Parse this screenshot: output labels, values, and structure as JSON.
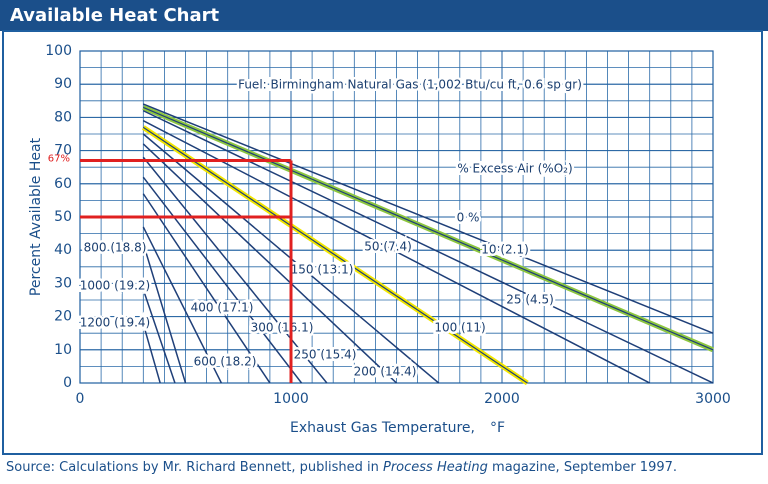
{
  "chart_data": {
    "type": "line",
    "title": "Available Heat Chart",
    "annotation": "Fuel: Birmingham Natural Gas (1,002 Btu/cu ft, 0.6 sp gr)",
    "legend_title": "% Excess Air (%O₂)",
    "xlabel": "Exhaust Gas Temperature,",
    "xunit": "°F",
    "ylabel": "Percent Available Heat",
    "xlim": [
      0,
      3000
    ],
    "ylim": [
      0,
      100
    ],
    "xticks": [
      0,
      1000,
      2000,
      3000
    ],
    "yticks": [
      0,
      10,
      20,
      30,
      40,
      50,
      60,
      70,
      80,
      90,
      100
    ],
    "grid": true,
    "series": [
      {
        "name": "0 %",
        "color": "#1f3f78",
        "x": [
          300,
          3000
        ],
        "values": [
          84,
          15
        ]
      },
      {
        "name": "10 (2.1)",
        "color": "#8dc63f",
        "x": [
          300,
          3000
        ],
        "values": [
          83,
          10
        ]
      },
      {
        "name": "25 (4.5)",
        "color": "#1f3f78",
        "x": [
          300,
          3000
        ],
        "values": [
          82,
          0
        ]
      },
      {
        "name": "50 (7.4)",
        "color": "#1f3f78",
        "x": [
          300,
          2700
        ],
        "values": [
          79,
          0
        ]
      },
      {
        "name": "100 (11)",
        "color": "#f2e600",
        "x": [
          300,
          2120
        ],
        "values": [
          77,
          0
        ]
      },
      {
        "name": "150 (13.1)",
        "color": "#1f3f78",
        "x": [
          300,
          1700
        ],
        "values": [
          75,
          0
        ]
      },
      {
        "name": "200 (14.4)",
        "color": "#1f3f78",
        "x": [
          300,
          1500
        ],
        "values": [
          72,
          0
        ]
      },
      {
        "name": "250 (15.4)",
        "color": "#1f3f78",
        "x": [
          300,
          1170
        ],
        "values": [
          68,
          0
        ]
      },
      {
        "name": "300 (16.1)",
        "color": "#1f3f78",
        "x": [
          300,
          1050
        ],
        "values": [
          62,
          0
        ]
      },
      {
        "name": "400 (17.1)",
        "color": "#1f3f78",
        "x": [
          300,
          900
        ],
        "values": [
          57,
          0
        ]
      },
      {
        "name": "600 (18.2)",
        "color": "#1f3f78",
        "x": [
          300,
          670
        ],
        "values": [
          47,
          0
        ]
      },
      {
        "name": "800 (18.8)",
        "color": "#1f3f78",
        "x": [
          300,
          500
        ],
        "values": [
          42,
          0
        ]
      },
      {
        "name": "1000 (19.2)",
        "color": "#1f3f78",
        "x": [
          290,
          450
        ],
        "values": [
          30,
          0
        ]
      },
      {
        "name": "1200 (19.4)",
        "color": "#1f3f78",
        "x": [
          290,
          380
        ],
        "values": [
          20,
          0
        ]
      }
    ],
    "highlight": {
      "color": "#e02020",
      "x": 1000,
      "y": [
        67,
        50
      ],
      "label": "67%"
    },
    "source": [
      "Source: Calculations by Mr. Richard Bennett, published in ",
      "Process Heating",
      " magazine, September 1997."
    ]
  }
}
